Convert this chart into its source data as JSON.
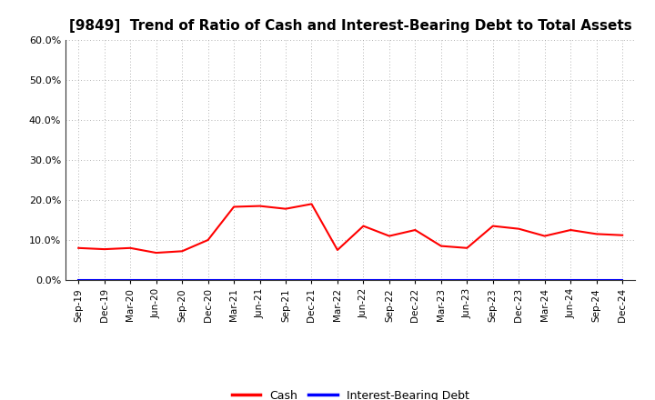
{
  "title": "[9849]  Trend of Ratio of Cash and Interest-Bearing Debt to Total Assets",
  "x_labels": [
    "Sep-19",
    "Dec-19",
    "Mar-20",
    "Jun-20",
    "Sep-20",
    "Dec-20",
    "Mar-21",
    "Jun-21",
    "Sep-21",
    "Dec-21",
    "Mar-22",
    "Jun-22",
    "Sep-22",
    "Dec-22",
    "Mar-23",
    "Jun-23",
    "Sep-23",
    "Dec-23",
    "Mar-24",
    "Jun-24",
    "Sep-24",
    "Dec-24"
  ],
  "cash": [
    8.0,
    7.7,
    8.0,
    6.8,
    7.2,
    10.0,
    18.3,
    18.5,
    17.8,
    19.0,
    7.5,
    13.5,
    11.0,
    12.5,
    8.5,
    8.0,
    13.5,
    12.8,
    11.0,
    12.5,
    11.5,
    11.2
  ],
  "interest_bearing_debt": [
    0.0,
    0.0,
    0.0,
    0.0,
    0.0,
    0.0,
    0.0,
    0.0,
    0.0,
    0.0,
    0.0,
    0.0,
    0.0,
    0.0,
    0.0,
    0.0,
    0.0,
    0.0,
    0.0,
    0.0,
    0.0,
    0.0
  ],
  "cash_color": "#ff0000",
  "debt_color": "#0000ff",
  "ylim": [
    0,
    60
  ],
  "yticks": [
    0,
    10,
    20,
    30,
    40,
    50,
    60
  ],
  "background_color": "#ffffff",
  "plot_bg_color": "#ffffff",
  "grid_color": "#999999",
  "title_fontsize": 11,
  "legend_cash": "Cash",
  "legend_debt": "Interest-Bearing Debt"
}
